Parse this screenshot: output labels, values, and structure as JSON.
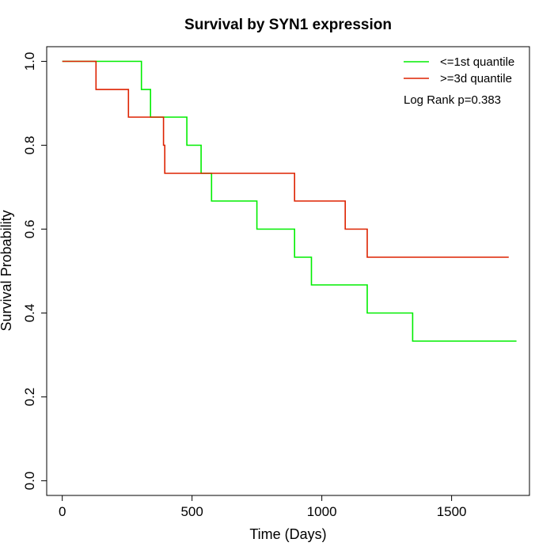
{
  "chart_data": {
    "type": "line",
    "title": "Survival by SYN1 expression",
    "xlabel": "Time (Days)",
    "ylabel": "Survival Probability",
    "xlim": [
      -60,
      1800
    ],
    "ylim": [
      -0.035,
      1.035
    ],
    "xticks": [
      0,
      500,
      1000,
      1500
    ],
    "yticks": [
      0.0,
      0.2,
      0.4,
      0.6,
      0.8,
      1.0
    ],
    "xtick_labels": [
      "0",
      "500",
      "1000",
      "1500"
    ],
    "ytick_labels": [
      "0.0",
      "0.2",
      "0.4",
      "0.6",
      "0.8",
      "1.0"
    ],
    "grid": false,
    "legend_position": "top-right",
    "annotation": "Log Rank p=0.383",
    "series": [
      {
        "name": "<=1st quantile",
        "color": "#00ee00",
        "x": [
          0,
          305,
          305,
          340,
          340,
          480,
          480,
          535,
          535,
          575,
          575,
          750,
          750,
          895,
          895,
          960,
          960,
          1175,
          1175,
          1350,
          1350,
          1750
        ],
        "y": [
          1.0,
          1.0,
          0.933,
          0.933,
          0.867,
          0.867,
          0.8,
          0.8,
          0.733,
          0.733,
          0.667,
          0.667,
          0.6,
          0.6,
          0.533,
          0.533,
          0.467,
          0.467,
          0.4,
          0.4,
          0.333,
          0.333
        ]
      },
      {
        "name": ">=3d quantile",
        "color": "#dd2200",
        "x": [
          0,
          130,
          130,
          255,
          255,
          390,
          390,
          395,
          395,
          895,
          895,
          1090,
          1090,
          1175,
          1175,
          1720
        ],
        "y": [
          1.0,
          1.0,
          0.933,
          0.933,
          0.867,
          0.867,
          0.8,
          0.8,
          0.733,
          0.733,
          0.667,
          0.667,
          0.6,
          0.6,
          0.533,
          0.533
        ]
      }
    ]
  }
}
